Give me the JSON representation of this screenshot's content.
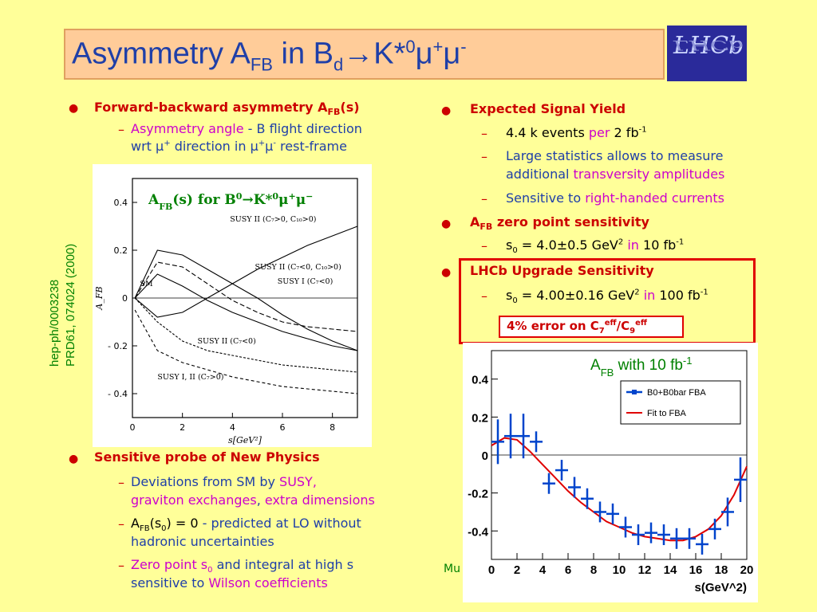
{
  "title": {
    "main": "Asymmetry A",
    "sub1": "FB",
    "mid": " in B",
    "sub2": "d",
    "arrow": "→K*",
    "sup0": "0",
    "mu": "μ",
    "plus": "+",
    "mu2": "μ",
    "minus": "-"
  },
  "logo": {
    "text": "LHCb"
  },
  "sidebar": {
    "ref1": "hep-ph/0003238",
    "ref2": "PRD61, 074024 (2000)"
  },
  "left": {
    "b1": {
      "label": "Forward-backward asymmetry A",
      "sub": "FB",
      "tail": "(s)"
    },
    "d1": {
      "a": "Asymmetry angle",
      "b": " -  B flight direction",
      "c": "wrt ",
      "d": "μ",
      "e": "+",
      "f": " direction in ",
      "g": "μ",
      "h": "+",
      "i": "μ",
      "j": "-",
      "k": " rest-frame"
    },
    "plot_title": {
      "a": "A",
      "sub": "FB",
      "b": "(s) for B",
      "sup0": "0",
      "c": "→K*",
      "sup1": "0",
      "d": "μ",
      "sup2": "+",
      "e": "μ",
      "sup3": "−"
    },
    "b2": "Sensitive probe of New Physics",
    "d2": {
      "a": "Deviations from SM by ",
      "b": "SUSY,",
      "c": "graviton exchanges",
      "d": ", ",
      "e": "extra dimensions"
    },
    "d3": {
      "a": "A",
      "sub": "FB",
      "b": "(s",
      "sub0": "0",
      "c": ") = 0",
      "d": " - predicted at LO without",
      "e": "hadronic uncertainties"
    },
    "d4": {
      "a": "Zero point s",
      "sub": "0",
      "b": " and integral at high s",
      "c": "sensitive to ",
      "d": "Wilson coefficients"
    }
  },
  "right": {
    "b1": "Expected Signal Yield",
    "d1": {
      "a": "4.4 k events ",
      "b": "per",
      "c": " 2 fb",
      "sup": "-1"
    },
    "d2": {
      "a": "Large statistics allows to measure",
      "b": "additional ",
      "c": "transversity amplitudes"
    },
    "d3": {
      "a": "Sensitive to ",
      "b": "right-handed currents"
    },
    "b2": {
      "a": "A",
      "sub": "FB",
      "b": " zero point sensitivity"
    },
    "d4": {
      "a": "s",
      "sub": "0",
      "b": " = 4.0±0.5 GeV",
      "sup": "2",
      "c": " in",
      "d": " 10 fb",
      "sup2": "-1"
    },
    "b3": "LHCb Upgrade Sensitivity",
    "d5": {
      "a": "s",
      "sub": "0",
      "b": " = 4.00±0.16 GeV",
      "sup": "2",
      "c": " in",
      "d": " 100 fb",
      "sup2": "-1"
    },
    "err": {
      "a": "4% error on C",
      "sub1": "7",
      "sup1": "eff",
      "b": "/C",
      "sub2": "9",
      "sup2": "eff"
    },
    "plot_label": {
      "a": "A",
      "sub": "FB",
      "b": " with 10 fb",
      "sup": "-1"
    },
    "legend": [
      "B0+B0bar FBA",
      "Fit to FBA"
    ],
    "cropped_text": "Mu"
  },
  "chart_data": [
    {
      "type": "line",
      "xlabel": "s[GeV²]",
      "ylabel": "A_FB",
      "xlim": [
        0,
        9
      ],
      "ylim": [
        -0.5,
        0.5
      ],
      "xticks": [
        "0",
        "2",
        "4",
        "6",
        "8"
      ],
      "yticks": [
        "0.4",
        "0.2",
        "0",
        "- 0.2",
        "- 0.4"
      ],
      "labels": [
        "SUSY II (C₇>0, C₁₀>0)",
        "SUSY II (C₇<0, C₁₀>0)",
        "SUSY I (C₇<0)",
        "SM",
        "SUSY II (C₇<0)",
        "SUSY I, II (C₇>0)"
      ],
      "series": [
        {
          "x": [
            0.1,
            1,
            2,
            3,
            4,
            5,
            6,
            7,
            8,
            9
          ],
          "y": [
            0,
            0.2,
            0.18,
            0.12,
            0.06,
            0.0,
            -0.07,
            -0.13,
            -0.18,
            -0.22
          ]
        },
        {
          "x": [
            0.1,
            1,
            2,
            3,
            4,
            5,
            6,
            7,
            8,
            9
          ],
          "y": [
            0,
            -0.08,
            -0.06,
            0.0,
            0.06,
            0.12,
            0.17,
            0.22,
            0.26,
            0.3
          ]
        },
        {
          "x": [
            0.1,
            1,
            2,
            3,
            4,
            5,
            6,
            7,
            8,
            9
          ],
          "y": [
            0,
            0.15,
            0.13,
            0.06,
            -0.01,
            -0.06,
            -0.1,
            -0.12,
            -0.13,
            -0.14
          ]
        },
        {
          "x": [
            0.1,
            1,
            2,
            3,
            4,
            5,
            6,
            7,
            8,
            9
          ],
          "y": [
            0,
            0.1,
            0.05,
            -0.01,
            -0.06,
            -0.1,
            -0.14,
            -0.17,
            -0.2,
            -0.22
          ]
        },
        {
          "x": [
            0.1,
            1,
            2,
            3,
            4,
            5,
            6,
            7,
            8,
            9
          ],
          "y": [
            0,
            -0.1,
            -0.18,
            -0.22,
            -0.24,
            -0.26,
            -0.28,
            -0.29,
            -0.3,
            -0.31
          ]
        },
        {
          "x": [
            0.1,
            1,
            2,
            3,
            4,
            5,
            6,
            7,
            8,
            9
          ],
          "y": [
            -0.05,
            -0.22,
            -0.27,
            -0.3,
            -0.33,
            -0.35,
            -0.37,
            -0.38,
            -0.39,
            -0.4
          ]
        }
      ]
    },
    {
      "type": "scatter",
      "xlabel": "s(GeV^2)",
      "xlim": [
        0,
        20
      ],
      "ylim": [
        -0.55,
        0.55
      ],
      "xticks": [
        "0",
        "2",
        "4",
        "6",
        "8",
        "10",
        "12",
        "14",
        "16",
        "18",
        "20"
      ],
      "yticks": [
        "0.4",
        "0.2",
        "0",
        "-0.2",
        "-0.4"
      ],
      "series": [
        {
          "name": "B0+B0bar FBA",
          "x": [
            0.5,
            1.5,
            2.5,
            3.5,
            4.5,
            5.5,
            6.5,
            7.5,
            8.5,
            9.5,
            10.5,
            11.5,
            12.5,
            13.5,
            14.5,
            15.5,
            16.5,
            17.5,
            18.5,
            19.5
          ],
          "y": [
            0.07,
            0.1,
            0.1,
            0.07,
            -0.15,
            -0.08,
            -0.17,
            -0.23,
            -0.3,
            -0.31,
            -0.38,
            -0.42,
            -0.41,
            -0.42,
            -0.44,
            -0.44,
            -0.47,
            -0.39,
            -0.3,
            -0.13
          ]
        },
        {
          "name": "Fit to FBA",
          "x": [
            0,
            1,
            2,
            3,
            4,
            5,
            6,
            7,
            8,
            9,
            10,
            11,
            12,
            13,
            14,
            15,
            16,
            17,
            18,
            19,
            20
          ],
          "y": [
            0.05,
            0.09,
            0.08,
            0.02,
            -0.05,
            -0.12,
            -0.19,
            -0.25,
            -0.3,
            -0.35,
            -0.38,
            -0.41,
            -0.43,
            -0.44,
            -0.45,
            -0.45,
            -0.43,
            -0.39,
            -0.32,
            -0.21,
            -0.06
          ]
        }
      ]
    }
  ]
}
